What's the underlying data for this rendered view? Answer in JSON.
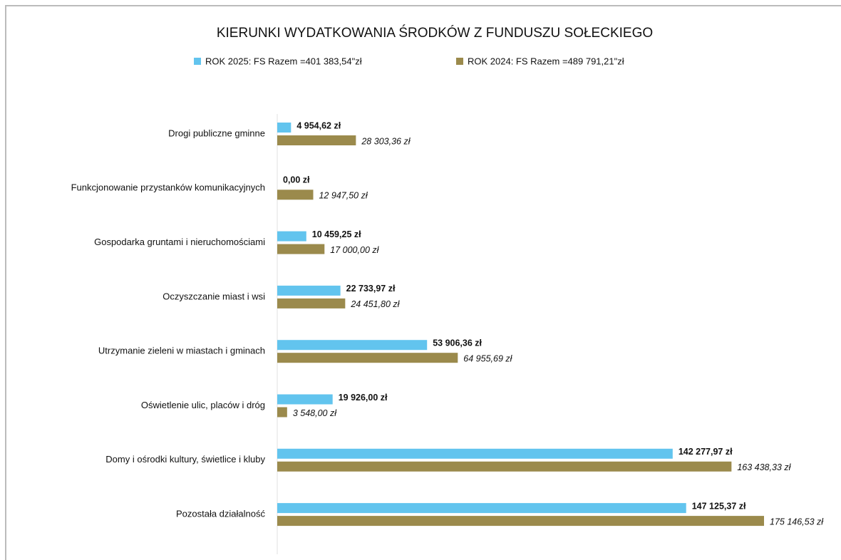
{
  "chart_data": {
    "type": "bar",
    "orientation": "horizontal",
    "title": "KIERUNKI  WYDATKOWANIA ŚRODKÓW Z  FUNDUSZU SOŁECKIEGO",
    "categories": [
      "Drogi publiczne gminne",
      "Funkcjonowanie przystanków komunikacyjnych",
      "Gospodarka gruntami i nieruchomościami",
      "Oczyszczanie miast i wsi",
      "Utrzymanie zieleni w miastach i gminach",
      "Oświetlenie ulic, placów i dróg",
      "Domy i ośrodki kultury, świetlice i kluby",
      "Pozostała działalność"
    ],
    "series": [
      {
        "name": "ROK 2025:  FS Razem =401 383,54\"zł",
        "color": "#62c4ee",
        "values": [
          4954.62,
          0,
          10459.25,
          22733.97,
          53906.36,
          19926,
          142277.97,
          147125.37
        ],
        "value_labels": [
          "4 954,62 zł",
          "0,00 zł",
          "10 459,25 zł",
          "22 733,97 zł",
          "53 906,36 zł",
          "19 926,00 zł",
          "142 277,97 zł",
          "147 125,37 zł"
        ]
      },
      {
        "name": "ROK 2024:  FS Razem =489 791,21\"zł",
        "color": "#9b8a4c",
        "values": [
          28303.36,
          12947.5,
          17000,
          24451.8,
          64955.69,
          3548,
          163438.33,
          175146.53
        ],
        "value_labels": [
          "28 303,36 zł",
          "12 947,50 zł",
          "17 000,00 zł",
          "24 451,80 zł",
          "64 955,69 zł",
          "3 548,00 zł",
          "163 438,33 zł",
          "175 146,53 zł"
        ]
      }
    ]
  }
}
